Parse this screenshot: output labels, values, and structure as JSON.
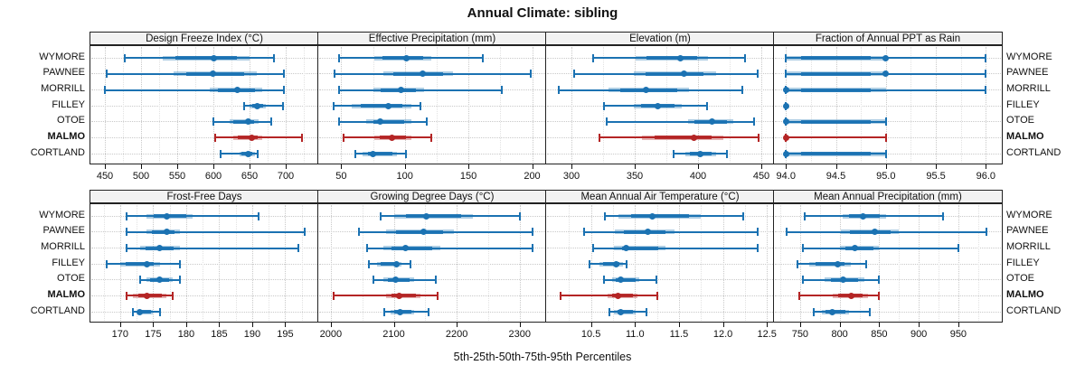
{
  "title": "Annual Climate: sibling",
  "caption": "5th-25th-50th-75th-95th Percentiles",
  "sites": [
    "WYMORE",
    "PAWNEE",
    "MORRILL",
    "FILLEY",
    "OTOE",
    "MALMO",
    "CORTLAND"
  ],
  "highlight_site": "MALMO",
  "colors": {
    "series_blue": "#1b72b2",
    "highlight_red": "#b42525",
    "band_alpha": 0.35,
    "header_bg": "#f2f2f2",
    "panel_border": "#222222",
    "gridline": "#c9c9c9"
  },
  "chart_data": {
    "type": "scatter",
    "variant": "horizontal-percentile-interval-plot",
    "percentile_labels": [
      "p5",
      "p25",
      "p50",
      "p75",
      "p95"
    ],
    "legend": "one row per station; MALMO highlighted in red; whisker = 5th-95th, band = 25th-75th, dot = median",
    "panels": [
      {
        "title": "Design Freeze Index (°C)",
        "row": "top",
        "ticks": [
          "450",
          "500",
          "550",
          "600",
          "650",
          "700"
        ],
        "domain": [
          430,
          745
        ],
        "series": [
          {
            "site": "WYMORE",
            "values": [
              478,
              530,
              600,
              650,
              684
            ]
          },
          {
            "site": "PAWNEE",
            "values": [
              452,
              545,
              599,
              660,
              698
            ]
          },
          {
            "site": "MORRILL",
            "values": [
              450,
              595,
              633,
              668,
              697
            ]
          },
          {
            "site": "FILLEY",
            "values": [
              643,
              650,
              661,
              672,
              696
            ]
          },
          {
            "site": "OTOE",
            "values": [
              600,
              622,
              648,
              662,
              680
            ]
          },
          {
            "site": "MALMO",
            "values": [
              602,
              627,
              653,
              668,
              722
            ]
          },
          {
            "site": "CORTLAND",
            "values": [
              610,
              636,
              648,
              657,
              661
            ]
          }
        ]
      },
      {
        "title": "Effective Precipitation (mm)",
        "row": "top",
        "ticks": [
          "50",
          "100",
          "150",
          "200"
        ],
        "domain": [
          32,
          211
        ],
        "series": [
          {
            "site": "WYMORE",
            "values": [
              48,
              76,
              101,
              121,
              161
            ]
          },
          {
            "site": "PAWNEE",
            "values": [
              45,
              83,
              114,
              138,
              199
            ]
          },
          {
            "site": "MORRILL",
            "values": [
              48,
              75,
              97,
              115,
              176
            ]
          },
          {
            "site": "FILLEY",
            "values": [
              44,
              58,
              87,
              105,
              112
            ]
          },
          {
            "site": "OTOE",
            "values": [
              48,
              70,
              81,
              105,
              117
            ]
          },
          {
            "site": "MALMO",
            "values": [
              52,
              76,
              90,
              105,
              121
            ]
          },
          {
            "site": "CORTLAND",
            "values": [
              61,
              67,
              75,
              94,
              101
            ]
          }
        ]
      },
      {
        "title": "Elevation (m)",
        "row": "top",
        "ticks": [
          "300",
          "350",
          "400",
          "450"
        ],
        "domain": [
          280,
          460
        ],
        "series": [
          {
            "site": "WYMORE",
            "values": [
              317,
              351,
              386,
              408,
              437
            ]
          },
          {
            "site": "PAWNEE",
            "values": [
              302,
              349,
              389,
              414,
              447
            ]
          },
          {
            "site": "MORRILL",
            "values": [
              290,
              329,
              359,
              393,
              435
            ]
          },
          {
            "site": "FILLEY",
            "values": [
              326,
              349,
              368,
              387,
              407
            ]
          },
          {
            "site": "OTOE",
            "values": [
              328,
              392,
              411,
              428,
              444
            ]
          },
          {
            "site": "MALMO",
            "values": [
              322,
              356,
              397,
              420,
              448
            ]
          },
          {
            "site": "CORTLAND",
            "values": [
              381,
              390,
              402,
              414,
              423
            ]
          }
        ]
      },
      {
        "title": "Fraction of Annual PPT as Rain",
        "row": "top",
        "ticks": [
          "94.0",
          "94.5",
          "95.0",
          "95.5",
          "96.0"
        ],
        "domain": [
          93.88,
          96.16
        ],
        "series": [
          {
            "site": "WYMORE",
            "values": [
              94,
              94,
              95,
              95,
              96
            ]
          },
          {
            "site": "PAWNEE",
            "values": [
              94,
              94,
              95,
              95,
              96
            ]
          },
          {
            "site": "MORRILL",
            "values": [
              94,
              94,
              94,
              95,
              96
            ]
          },
          {
            "site": "FILLEY",
            "values": [
              94,
              94,
              94,
              94,
              94
            ]
          },
          {
            "site": "OTOE",
            "values": [
              94,
              94,
              94,
              95,
              95
            ]
          },
          {
            "site": "MALMO",
            "values": [
              94,
              94,
              94,
              94,
              95
            ]
          },
          {
            "site": "CORTLAND",
            "values": [
              94,
              94,
              94,
              95,
              95
            ]
          }
        ]
      },
      {
        "title": "Frost-Free Days",
        "row": "bottom",
        "ticks": [
          "170",
          "175",
          "180",
          "185",
          "190",
          "195"
        ],
        "domain": [
          165.5,
          200
        ],
        "series": [
          {
            "site": "WYMORE",
            "values": [
              171,
              174,
              177,
              181,
              191
            ]
          },
          {
            "site": "PAWNEE",
            "values": [
              171,
              174,
              177,
              179,
              198
            ]
          },
          {
            "site": "MORRILL",
            "values": [
              171,
              173,
              176,
              179,
              197
            ]
          },
          {
            "site": "FILLEY",
            "values": [
              168,
              170,
              174,
              176,
              179
            ]
          },
          {
            "site": "OTOE",
            "values": [
              173,
              174,
              176,
              178,
              179
            ]
          },
          {
            "site": "MALMO",
            "values": [
              171,
              172,
              174,
              177,
              178
            ]
          },
          {
            "site": "CORTLAND",
            "values": [
              172,
              173,
              173,
              175,
              176
            ]
          }
        ]
      },
      {
        "title": "Growing Degree Days (°C)",
        "row": "bottom",
        "ticks": [
          "2000",
          "2100",
          "2200",
          "2300"
        ],
        "domain": [
          1980,
          2342
        ],
        "series": [
          {
            "site": "WYMORE",
            "values": [
              2079,
              2100,
              2151,
              2226,
              2301
            ]
          },
          {
            "site": "PAWNEE",
            "values": [
              2045,
              2088,
              2147,
              2195,
              2320
            ]
          },
          {
            "site": "MORRILL",
            "values": [
              2057,
              2083,
              2119,
              2174,
              2320
            ]
          },
          {
            "site": "FILLEY",
            "values": [
              2061,
              2073,
              2104,
              2112,
              2126
            ]
          },
          {
            "site": "OTOE",
            "values": [
              2068,
              2083,
              2103,
              2133,
              2167
            ]
          },
          {
            "site": "MALMO",
            "values": [
              2004,
              2088,
              2108,
              2143,
              2170
            ]
          },
          {
            "site": "CORTLAND",
            "values": [
              2085,
              2095,
              2110,
              2133,
              2155
            ]
          }
        ]
      },
      {
        "title": "Mean Annual Air Temperature (°C)",
        "row": "bottom",
        "ticks": [
          "10.5",
          "11.0",
          "11.5",
          "12.0",
          "12.5"
        ],
        "domain": [
          9.99,
          12.58
        ],
        "series": [
          {
            "site": "WYMORE",
            "values": [
              10.66,
              10.81,
              11.2,
              11.75,
              12.23
            ]
          },
          {
            "site": "PAWNEE",
            "values": [
              10.42,
              10.77,
              11.15,
              11.45,
              12.4
            ]
          },
          {
            "site": "MORRILL",
            "values": [
              10.52,
              10.76,
              10.9,
              11.35,
              12.39
            ]
          },
          {
            "site": "FILLEY",
            "values": [
              10.48,
              10.6,
              10.79,
              10.86,
              10.9
            ]
          },
          {
            "site": "OTOE",
            "values": [
              10.65,
              10.74,
              10.84,
              11.05,
              11.24
            ]
          },
          {
            "site": "MALMO",
            "values": [
              10.15,
              10.69,
              10.81,
              11.03,
              11.25
            ]
          },
          {
            "site": "CORTLAND",
            "values": [
              10.71,
              10.76,
              10.84,
              11.01,
              11.13
            ]
          }
        ]
      },
      {
        "title": "Mean Annual Precipitation (mm)",
        "row": "bottom",
        "ticks": [
          "750",
          "800",
          "850",
          "900",
          "950"
        ],
        "domain": [
          717,
          1005
        ],
        "series": [
          {
            "site": "WYMORE",
            "values": [
              756,
              804,
              830,
              859,
              931
            ]
          },
          {
            "site": "PAWNEE",
            "values": [
              733,
              802,
              844,
              875,
              985
            ]
          },
          {
            "site": "MORRILL",
            "values": [
              754,
              800,
              819,
              850,
              950
            ]
          },
          {
            "site": "FILLEY",
            "values": [
              747,
              762,
              797,
              814,
              834
            ]
          },
          {
            "site": "OTOE",
            "values": [
              754,
              781,
              804,
              831,
              849
            ]
          },
          {
            "site": "MALMO",
            "values": [
              749,
              791,
              815,
              836,
              850
            ]
          },
          {
            "site": "CORTLAND",
            "values": [
              767,
              777,
              791,
              812,
              838
            ]
          }
        ]
      }
    ]
  }
}
